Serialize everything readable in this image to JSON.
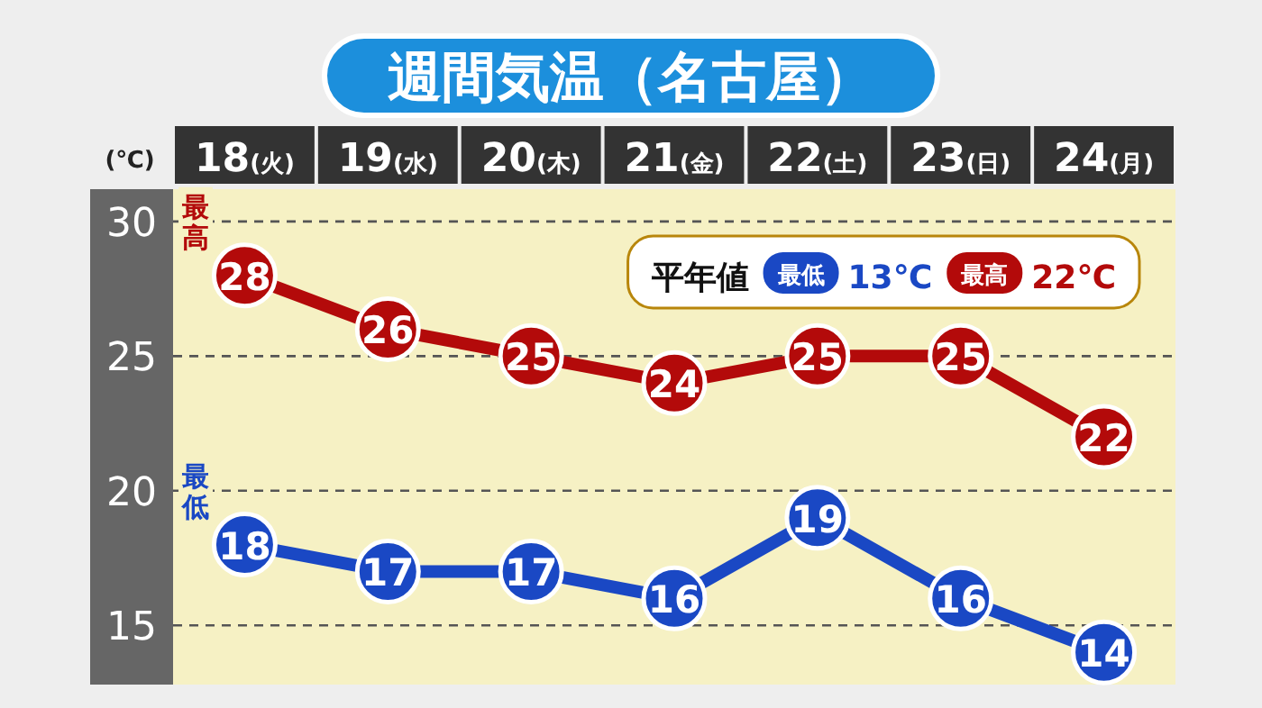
{
  "chart_data": {
    "type": "line",
    "title": "週間気温（名古屋）",
    "ylabel": "(℃)",
    "categories": [
      "18(火)",
      "19(水)",
      "20(木)",
      "21(金)",
      "22(土)",
      "23(日)",
      "24(月)"
    ],
    "series": [
      {
        "name": "最高",
        "color": "#b30a0a",
        "values": [
          28,
          26,
          25,
          24,
          25,
          25,
          22
        ]
      },
      {
        "name": "最低",
        "color": "#1a48c4",
        "values": [
          18,
          17,
          17,
          16,
          19,
          16,
          14
        ]
      }
    ],
    "ylim": [
      12.8,
      31.2
    ],
    "yticks": [
      15,
      20,
      25,
      30
    ],
    "grid": "y",
    "marker": "circle",
    "line_style": "solid",
    "data_labels": true,
    "annotations": [
      "平年値",
      "最低",
      "13℃",
      "最高",
      "22℃"
    ]
  }
}
